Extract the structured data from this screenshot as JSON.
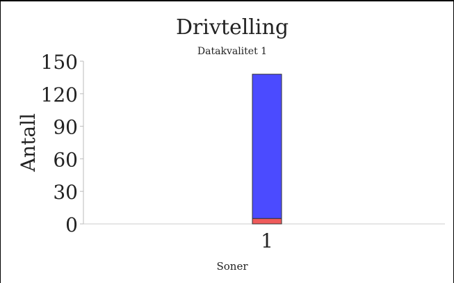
{
  "chart_data": {
    "type": "bar",
    "stacked": true,
    "title": "Drivtelling",
    "subtitle": "Datakvalitet 1",
    "xlabel": "Soner",
    "ylabel": "Antall",
    "categories": [
      "1"
    ],
    "series": [
      {
        "values": [
          5
        ],
        "color": "#ef5b5b"
      },
      {
        "values": [
          133
        ],
        "color": "#4b4bff"
      }
    ],
    "ylim": [
      0,
      150
    ],
    "yticks": [
      0,
      30,
      60,
      90,
      120,
      150
    ],
    "grid": false
  }
}
